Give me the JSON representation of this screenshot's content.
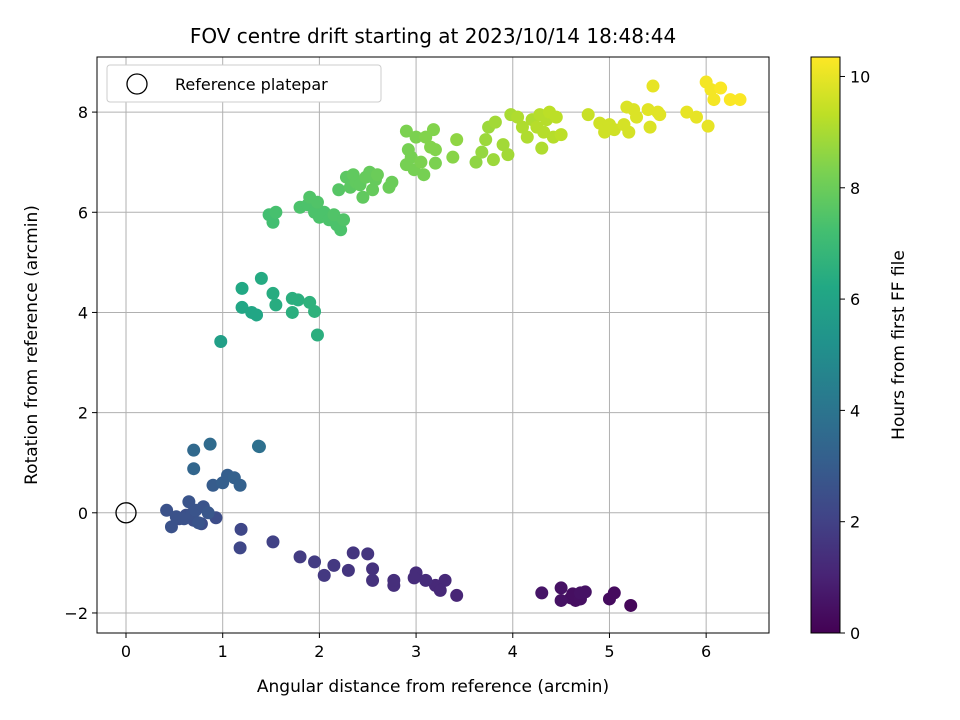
{
  "chart_data": {
    "type": "scatter",
    "title": "FOV centre drift starting at 2023/10/14 18:48:44",
    "xlabel": "Angular distance from reference (arcmin)",
    "ylabel": "Rotation from reference (arcmin)",
    "colorbar_label": "Hours from first FF file",
    "xlim": [
      -0.3,
      6.65
    ],
    "ylim": [
      -2.4,
      9.1
    ],
    "clim": [
      0,
      10.35
    ],
    "xticks": [
      0,
      1,
      2,
      3,
      4,
      5,
      6
    ],
    "yticks": [
      -2,
      0,
      2,
      4,
      6,
      8
    ],
    "cticks": [
      0,
      2,
      4,
      6,
      8,
      10
    ],
    "grid": true,
    "colormap": "viridis",
    "legend": {
      "position": "top-left",
      "entries": [
        {
          "label": "Reference platepar",
          "marker": "open-circle",
          "x": 0,
          "y": 0
        }
      ]
    },
    "points": [
      {
        "x": 4.3,
        "y": -1.6,
        "c": 0.6
      },
      {
        "x": 4.5,
        "y": -1.5,
        "c": 0.5
      },
      {
        "x": 4.6,
        "y": -1.7,
        "c": 0.4
      },
      {
        "x": 4.7,
        "y": -1.6,
        "c": 0.5
      },
      {
        "x": 4.75,
        "y": -1.58,
        "c": 0.5
      },
      {
        "x": 4.5,
        "y": -1.75,
        "c": 0.5
      },
      {
        "x": 4.65,
        "y": -1.75,
        "c": 0.4
      },
      {
        "x": 5.0,
        "y": -1.72,
        "c": 0.3
      },
      {
        "x": 5.05,
        "y": -1.6,
        "c": 0.3
      },
      {
        "x": 5.22,
        "y": -1.85,
        "c": 0.2
      },
      {
        "x": 4.62,
        "y": -1.62,
        "c": 0.4
      },
      {
        "x": 4.7,
        "y": -1.72,
        "c": 0.45
      },
      {
        "x": 3.42,
        "y": -1.65,
        "c": 1.1
      },
      {
        "x": 3.3,
        "y": -1.35,
        "c": 1.2
      },
      {
        "x": 3.2,
        "y": -1.45,
        "c": 1.2
      },
      {
        "x": 3.25,
        "y": -1.55,
        "c": 1.2
      },
      {
        "x": 3.1,
        "y": -1.35,
        "c": 1.3
      },
      {
        "x": 3.0,
        "y": -1.2,
        "c": 1.3
      },
      {
        "x": 2.98,
        "y": -1.3,
        "c": 1.3
      },
      {
        "x": 2.77,
        "y": -1.45,
        "c": 1.4
      },
      {
        "x": 2.77,
        "y": -1.35,
        "c": 1.4
      },
      {
        "x": 2.55,
        "y": -1.35,
        "c": 1.5
      },
      {
        "x": 2.55,
        "y": -1.12,
        "c": 1.5
      },
      {
        "x": 2.5,
        "y": -0.82,
        "c": 1.6
      },
      {
        "x": 2.35,
        "y": -0.8,
        "c": 1.6
      },
      {
        "x": 2.3,
        "y": -1.15,
        "c": 1.6
      },
      {
        "x": 2.15,
        "y": -1.05,
        "c": 1.7
      },
      {
        "x": 2.05,
        "y": -1.25,
        "c": 1.7
      },
      {
        "x": 1.95,
        "y": -0.98,
        "c": 1.8
      },
      {
        "x": 1.8,
        "y": -0.88,
        "c": 1.8
      },
      {
        "x": 1.52,
        "y": -0.58,
        "c": 2.0
      },
      {
        "x": 1.18,
        "y": -0.7,
        "c": 2.2
      },
      {
        "x": 1.19,
        "y": -0.33,
        "c": 2.2
      },
      {
        "x": 0.93,
        "y": -0.1,
        "c": 2.4
      },
      {
        "x": 0.78,
        "y": -0.22,
        "c": 2.4
      },
      {
        "x": 0.7,
        "y": -0.15,
        "c": 2.5
      },
      {
        "x": 0.62,
        "y": -0.05,
        "c": 2.5
      },
      {
        "x": 0.55,
        "y": -0.12,
        "c": 2.5
      },
      {
        "x": 0.47,
        "y": -0.28,
        "c": 2.6
      },
      {
        "x": 0.42,
        "y": 0.05,
        "c": 2.6
      },
      {
        "x": 0.52,
        "y": -0.08,
        "c": 2.6
      },
      {
        "x": 0.6,
        "y": -0.12,
        "c": 2.6
      },
      {
        "x": 0.68,
        "y": -0.02,
        "c": 2.6
      },
      {
        "x": 0.72,
        "y": 0.05,
        "c": 2.7
      },
      {
        "x": 0.75,
        "y": -0.2,
        "c": 2.7
      },
      {
        "x": 0.8,
        "y": 0.12,
        "c": 2.7
      },
      {
        "x": 0.65,
        "y": 0.22,
        "c": 2.7
      },
      {
        "x": 0.85,
        "y": 0.0,
        "c": 2.8
      },
      {
        "x": 0.9,
        "y": 0.55,
        "c": 3.0
      },
      {
        "x": 1.0,
        "y": 0.6,
        "c": 3.1
      },
      {
        "x": 1.05,
        "y": 0.75,
        "c": 3.1
      },
      {
        "x": 1.12,
        "y": 0.7,
        "c": 3.2
      },
      {
        "x": 1.18,
        "y": 0.55,
        "c": 3.2
      },
      {
        "x": 0.7,
        "y": 0.88,
        "c": 3.4
      },
      {
        "x": 0.7,
        "y": 1.25,
        "c": 3.5
      },
      {
        "x": 0.87,
        "y": 1.37,
        "c": 3.6
      },
      {
        "x": 1.37,
        "y": 1.33,
        "c": 3.8
      },
      {
        "x": 1.38,
        "y": 1.32,
        "c": 3.8
      },
      {
        "x": 0.98,
        "y": 3.42,
        "c": 5.8
      },
      {
        "x": 1.2,
        "y": 4.1,
        "c": 6.1
      },
      {
        "x": 1.2,
        "y": 4.48,
        "c": 6.2
      },
      {
        "x": 1.3,
        "y": 4.0,
        "c": 6.1
      },
      {
        "x": 1.35,
        "y": 3.95,
        "c": 6.1
      },
      {
        "x": 1.4,
        "y": 4.68,
        "c": 6.3
      },
      {
        "x": 1.52,
        "y": 4.38,
        "c": 6.4
      },
      {
        "x": 1.55,
        "y": 4.15,
        "c": 6.4
      },
      {
        "x": 1.72,
        "y": 4.0,
        "c": 6.5
      },
      {
        "x": 1.72,
        "y": 4.28,
        "c": 6.5
      },
      {
        "x": 1.78,
        "y": 4.25,
        "c": 6.5
      },
      {
        "x": 1.9,
        "y": 4.2,
        "c": 6.6
      },
      {
        "x": 1.95,
        "y": 4.02,
        "c": 6.6
      },
      {
        "x": 1.98,
        "y": 3.55,
        "c": 6.5
      },
      {
        "x": 1.48,
        "y": 5.95,
        "c": 7.2
      },
      {
        "x": 1.52,
        "y": 5.8,
        "c": 7.2
      },
      {
        "x": 1.55,
        "y": 6.0,
        "c": 7.3
      },
      {
        "x": 1.8,
        "y": 6.1,
        "c": 7.4
      },
      {
        "x": 1.88,
        "y": 6.15,
        "c": 7.4
      },
      {
        "x": 1.9,
        "y": 6.3,
        "c": 7.5
      },
      {
        "x": 1.95,
        "y": 6.0,
        "c": 7.4
      },
      {
        "x": 1.98,
        "y": 6.2,
        "c": 7.5
      },
      {
        "x": 2.0,
        "y": 5.9,
        "c": 7.4
      },
      {
        "x": 2.05,
        "y": 6.0,
        "c": 7.4
      },
      {
        "x": 2.1,
        "y": 5.85,
        "c": 7.4
      },
      {
        "x": 2.15,
        "y": 5.95,
        "c": 7.5
      },
      {
        "x": 2.18,
        "y": 5.75,
        "c": 7.4
      },
      {
        "x": 2.22,
        "y": 5.65,
        "c": 7.4
      },
      {
        "x": 2.25,
        "y": 5.85,
        "c": 7.5
      },
      {
        "x": 2.2,
        "y": 6.45,
        "c": 7.6
      },
      {
        "x": 2.28,
        "y": 6.7,
        "c": 7.7
      },
      {
        "x": 2.32,
        "y": 6.5,
        "c": 7.7
      },
      {
        "x": 2.35,
        "y": 6.75,
        "c": 7.8
      },
      {
        "x": 2.38,
        "y": 6.6,
        "c": 7.8
      },
      {
        "x": 2.42,
        "y": 6.55,
        "c": 7.8
      },
      {
        "x": 2.45,
        "y": 6.3,
        "c": 7.8
      },
      {
        "x": 2.48,
        "y": 6.7,
        "c": 7.9
      },
      {
        "x": 2.52,
        "y": 6.8,
        "c": 7.9
      },
      {
        "x": 2.55,
        "y": 6.45,
        "c": 7.9
      },
      {
        "x": 2.58,
        "y": 6.65,
        "c": 7.9
      },
      {
        "x": 2.6,
        "y": 6.75,
        "c": 8.0
      },
      {
        "x": 2.72,
        "y": 6.5,
        "c": 8.0
      },
      {
        "x": 2.75,
        "y": 6.6,
        "c": 8.0
      },
      {
        "x": 2.9,
        "y": 6.95,
        "c": 8.2
      },
      {
        "x": 2.92,
        "y": 7.25,
        "c": 8.2
      },
      {
        "x": 2.95,
        "y": 7.1,
        "c": 8.2
      },
      {
        "x": 2.98,
        "y": 6.85,
        "c": 8.2
      },
      {
        "x": 3.0,
        "y": 7.5,
        "c": 8.3
      },
      {
        "x": 3.05,
        "y": 7.0,
        "c": 8.3
      },
      {
        "x": 3.08,
        "y": 6.75,
        "c": 8.2
      },
      {
        "x": 3.1,
        "y": 7.5,
        "c": 8.4
      },
      {
        "x": 3.15,
        "y": 7.3,
        "c": 8.4
      },
      {
        "x": 3.18,
        "y": 7.65,
        "c": 8.4
      },
      {
        "x": 3.2,
        "y": 6.98,
        "c": 8.3
      },
      {
        "x": 3.2,
        "y": 7.25,
        "c": 8.4
      },
      {
        "x": 2.9,
        "y": 7.62,
        "c": 8.3
      },
      {
        "x": 3.38,
        "y": 7.1,
        "c": 8.5
      },
      {
        "x": 3.42,
        "y": 7.45,
        "c": 8.6
      },
      {
        "x": 3.62,
        "y": 7.0,
        "c": 8.6
      },
      {
        "x": 3.68,
        "y": 7.2,
        "c": 8.7
      },
      {
        "x": 3.72,
        "y": 7.45,
        "c": 8.8
      },
      {
        "x": 3.75,
        "y": 7.7,
        "c": 8.8
      },
      {
        "x": 3.8,
        "y": 7.05,
        "c": 8.8
      },
      {
        "x": 3.82,
        "y": 7.8,
        "c": 8.9
      },
      {
        "x": 3.9,
        "y": 7.35,
        "c": 8.9
      },
      {
        "x": 3.95,
        "y": 7.15,
        "c": 8.9
      },
      {
        "x": 3.98,
        "y": 7.95,
        "c": 9.0
      },
      {
        "x": 4.05,
        "y": 7.9,
        "c": 9.1
      },
      {
        "x": 4.1,
        "y": 7.7,
        "c": 9.1
      },
      {
        "x": 4.15,
        "y": 7.5,
        "c": 9.1
      },
      {
        "x": 4.2,
        "y": 7.85,
        "c": 9.1
      },
      {
        "x": 4.25,
        "y": 7.7,
        "c": 9.2
      },
      {
        "x": 4.28,
        "y": 7.95,
        "c": 9.2
      },
      {
        "x": 4.3,
        "y": 7.28,
        "c": 9.1
      },
      {
        "x": 4.32,
        "y": 7.6,
        "c": 9.2
      },
      {
        "x": 4.35,
        "y": 7.85,
        "c": 9.2
      },
      {
        "x": 4.38,
        "y": 8.0,
        "c": 9.3
      },
      {
        "x": 4.42,
        "y": 7.5,
        "c": 9.2
      },
      {
        "x": 4.45,
        "y": 7.9,
        "c": 9.3
      },
      {
        "x": 4.5,
        "y": 7.55,
        "c": 9.3
      },
      {
        "x": 4.78,
        "y": 7.95,
        "c": 9.5
      },
      {
        "x": 4.9,
        "y": 7.78,
        "c": 9.6
      },
      {
        "x": 4.95,
        "y": 7.6,
        "c": 9.6
      },
      {
        "x": 5.0,
        "y": 7.75,
        "c": 9.6
      },
      {
        "x": 5.05,
        "y": 7.65,
        "c": 9.6
      },
      {
        "x": 5.15,
        "y": 7.75,
        "c": 9.7
      },
      {
        "x": 5.18,
        "y": 8.1,
        "c": 9.8
      },
      {
        "x": 5.2,
        "y": 7.6,
        "c": 9.7
      },
      {
        "x": 5.25,
        "y": 8.05,
        "c": 9.8
      },
      {
        "x": 5.28,
        "y": 7.9,
        "c": 9.8
      },
      {
        "x": 5.4,
        "y": 8.05,
        "c": 9.9
      },
      {
        "x": 5.42,
        "y": 7.7,
        "c": 9.8
      },
      {
        "x": 5.45,
        "y": 8.52,
        "c": 10.0
      },
      {
        "x": 5.5,
        "y": 8.0,
        "c": 9.9
      },
      {
        "x": 5.52,
        "y": 7.95,
        "c": 9.9
      },
      {
        "x": 5.8,
        "y": 8.0,
        "c": 10.0
      },
      {
        "x": 5.9,
        "y": 7.9,
        "c": 10.0
      },
      {
        "x": 6.0,
        "y": 8.6,
        "c": 10.2
      },
      {
        "x": 6.02,
        "y": 7.72,
        "c": 10.0
      },
      {
        "x": 6.05,
        "y": 8.45,
        "c": 10.2
      },
      {
        "x": 6.08,
        "y": 8.25,
        "c": 10.2
      },
      {
        "x": 6.15,
        "y": 8.48,
        "c": 10.3
      },
      {
        "x": 6.25,
        "y": 8.25,
        "c": 10.3
      },
      {
        "x": 6.35,
        "y": 8.25,
        "c": 10.3
      }
    ]
  }
}
